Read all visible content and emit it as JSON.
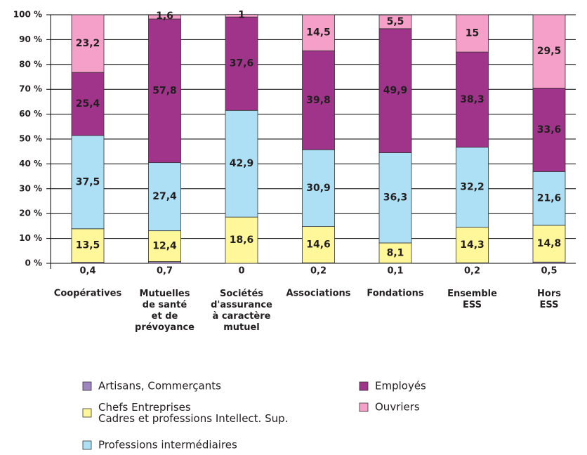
{
  "chart_data": {
    "type": "stacked_bar",
    "categories": [
      "Coopératives",
      "Mutuelles\nde santé\net de\nprévoyance",
      "Sociétés\nd'assurance\nà caractère\nmutuel",
      "Associations",
      "Fondations",
      "Ensemble\nESS",
      "Hors\nESS"
    ],
    "series": [
      {
        "name": "Artisans, Commerçants",
        "color": "#9f86c0",
        "values": [
          0.4,
          0.7,
          0,
          0.2,
          0.1,
          0.2,
          0.5
        ],
        "value_labels": [
          "0,4",
          "0,7",
          "0",
          "0,2",
          "0,1",
          "0,2",
          "0,5"
        ]
      },
      {
        "name": "Chefs Entreprises\nCadres et professions Intellect. Sup.",
        "color": "#fff799",
        "values": [
          13.5,
          12.4,
          18.6,
          14.6,
          8.1,
          14.3,
          14.8
        ],
        "value_labels": [
          "13,5",
          "12,4",
          "18,6",
          "14,6",
          "8,1",
          "14,3",
          "14,8"
        ]
      },
      {
        "name": "Professions intermédiaires",
        "color": "#aee0f5",
        "values": [
          37.5,
          27.4,
          42.9,
          30.9,
          36.3,
          32.2,
          21.6
        ],
        "value_labels": [
          "37,5",
          "27,4",
          "42,9",
          "30,9",
          "36,3",
          "32,2",
          "21,6"
        ]
      },
      {
        "name": "Employés",
        "color": "#a0338a",
        "values": [
          25.4,
          57.8,
          37.6,
          39.8,
          49.9,
          38.3,
          33.6
        ],
        "value_labels": [
          "25,4",
          "57,8",
          "37,6",
          "39,8",
          "49,9",
          "38,3",
          "33,6"
        ]
      },
      {
        "name": "Ouvriers",
        "color": "#f4a0c8",
        "values": [
          23.2,
          1.6,
          1,
          14.5,
          5.5,
          15,
          29.5
        ],
        "value_labels": [
          "23,2",
          "1,6",
          "1",
          "14,5",
          "5,5",
          "15",
          "29,5"
        ]
      }
    ],
    "ylim": [
      0,
      100
    ],
    "yticks": [
      {
        "value": 0,
        "label": "0 %"
      },
      {
        "value": 10,
        "label": "10 %"
      },
      {
        "value": 20,
        "label": "20 %"
      },
      {
        "value": 30,
        "label": "30 %"
      },
      {
        "value": 40,
        "label": "40 %"
      },
      {
        "value": 50,
        "label": "50 %"
      },
      {
        "value": 60,
        "label": "60 %"
      },
      {
        "value": 70,
        "label": "70 %"
      },
      {
        "value": 80,
        "label": "80 %"
      },
      {
        "value": 90,
        "label": "90 %"
      },
      {
        "value": 100,
        "label": "100 %"
      }
    ],
    "grid": true
  }
}
